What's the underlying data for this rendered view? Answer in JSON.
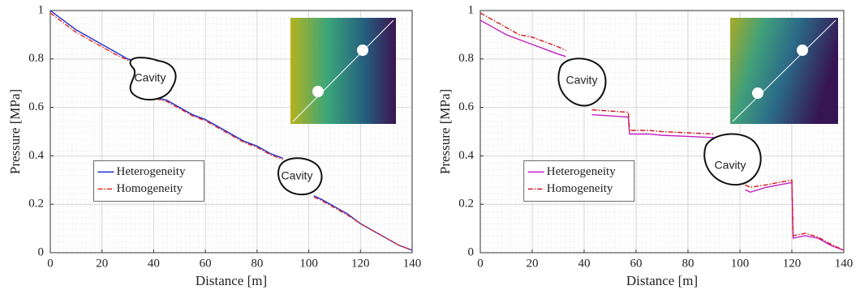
{
  "chart_data": [
    {
      "type": "line",
      "xlabel": "Distance [m]",
      "ylabel": "Pressure [MPa]",
      "xlim": [
        0,
        140
      ],
      "ylim": [
        0,
        1
      ],
      "xticks": [
        0,
        20,
        40,
        60,
        80,
        100,
        120,
        140
      ],
      "yticks": [
        0,
        0.2,
        0.4,
        0.6,
        0.8,
        1
      ],
      "grid": true,
      "legend": "center left",
      "annotations": [
        "Cavity",
        "Cavity"
      ],
      "x": [
        0,
        5,
        10,
        15,
        20,
        25,
        30,
        33,
        37,
        41,
        45,
        50,
        55,
        60,
        65,
        70,
        75,
        80,
        85,
        90,
        96,
        102,
        105,
        110,
        115,
        120,
        125,
        130,
        135,
        140
      ],
      "series": [
        {
          "name": "Heterogeneity",
          "color": "#1f2fd0",
          "dash": "solid",
          "values": [
            1.0,
            0.96,
            0.92,
            0.89,
            0.86,
            0.83,
            0.8,
            0.79,
            null,
            0.64,
            0.63,
            0.6,
            0.57,
            0.55,
            0.52,
            0.49,
            0.46,
            0.44,
            0.41,
            0.39,
            null,
            0.235,
            0.22,
            0.19,
            0.16,
            0.12,
            0.09,
            0.06,
            0.03,
            0.01
          ]
        },
        {
          "name": "Homogeneity",
          "color": "#e8261e",
          "dash": "dashdot",
          "values": [
            0.99,
            0.95,
            0.91,
            0.88,
            0.85,
            0.82,
            0.795,
            0.785,
            null,
            0.635,
            0.625,
            0.595,
            0.565,
            0.545,
            0.515,
            0.485,
            0.455,
            0.435,
            0.405,
            0.385,
            null,
            0.23,
            0.215,
            0.185,
            0.155,
            0.12,
            0.09,
            0.06,
            0.03,
            0.01
          ]
        }
      ]
    },
    {
      "type": "line",
      "xlabel": "Distance [m]",
      "ylabel": "Pressure [MPa]",
      "xlim": [
        0,
        140
      ],
      "ylim": [
        0,
        1
      ],
      "xticks": [
        0,
        20,
        40,
        60,
        80,
        100,
        120,
        140
      ],
      "yticks": [
        0,
        0.2,
        0.4,
        0.6,
        0.8,
        1
      ],
      "grid": true,
      "legend": "center left",
      "annotations": [
        "Cavity",
        "Cavity"
      ],
      "x": [
        0,
        5,
        10,
        15,
        20,
        25,
        30,
        33,
        38,
        43,
        50,
        57,
        57.5,
        65,
        70,
        80,
        90,
        96,
        102,
        104,
        110,
        115,
        120,
        120.5,
        125,
        130,
        135,
        140
      ],
      "series": [
        {
          "name": "Heterogeneity",
          "color": "#c21fc4",
          "dash": "solid",
          "values": [
            0.96,
            0.93,
            0.9,
            0.88,
            0.86,
            0.84,
            0.82,
            0.81,
            null,
            0.57,
            0.565,
            0.56,
            0.49,
            0.49,
            0.485,
            0.48,
            0.475,
            null,
            0.26,
            0.25,
            0.27,
            0.28,
            0.29,
            0.06,
            0.07,
            0.06,
            0.03,
            0.01
          ]
        },
        {
          "name": "Homogeneity",
          "color": "#d4161c",
          "dash": "dashdot",
          "values": [
            0.99,
            0.96,
            0.93,
            0.9,
            0.89,
            0.87,
            0.85,
            0.835,
            null,
            0.59,
            0.585,
            0.58,
            0.505,
            0.505,
            0.5,
            0.495,
            0.49,
            null,
            0.28,
            0.27,
            0.28,
            0.29,
            0.3,
            0.07,
            0.08,
            0.065,
            0.035,
            0.01
          ]
        }
      ]
    }
  ]
}
